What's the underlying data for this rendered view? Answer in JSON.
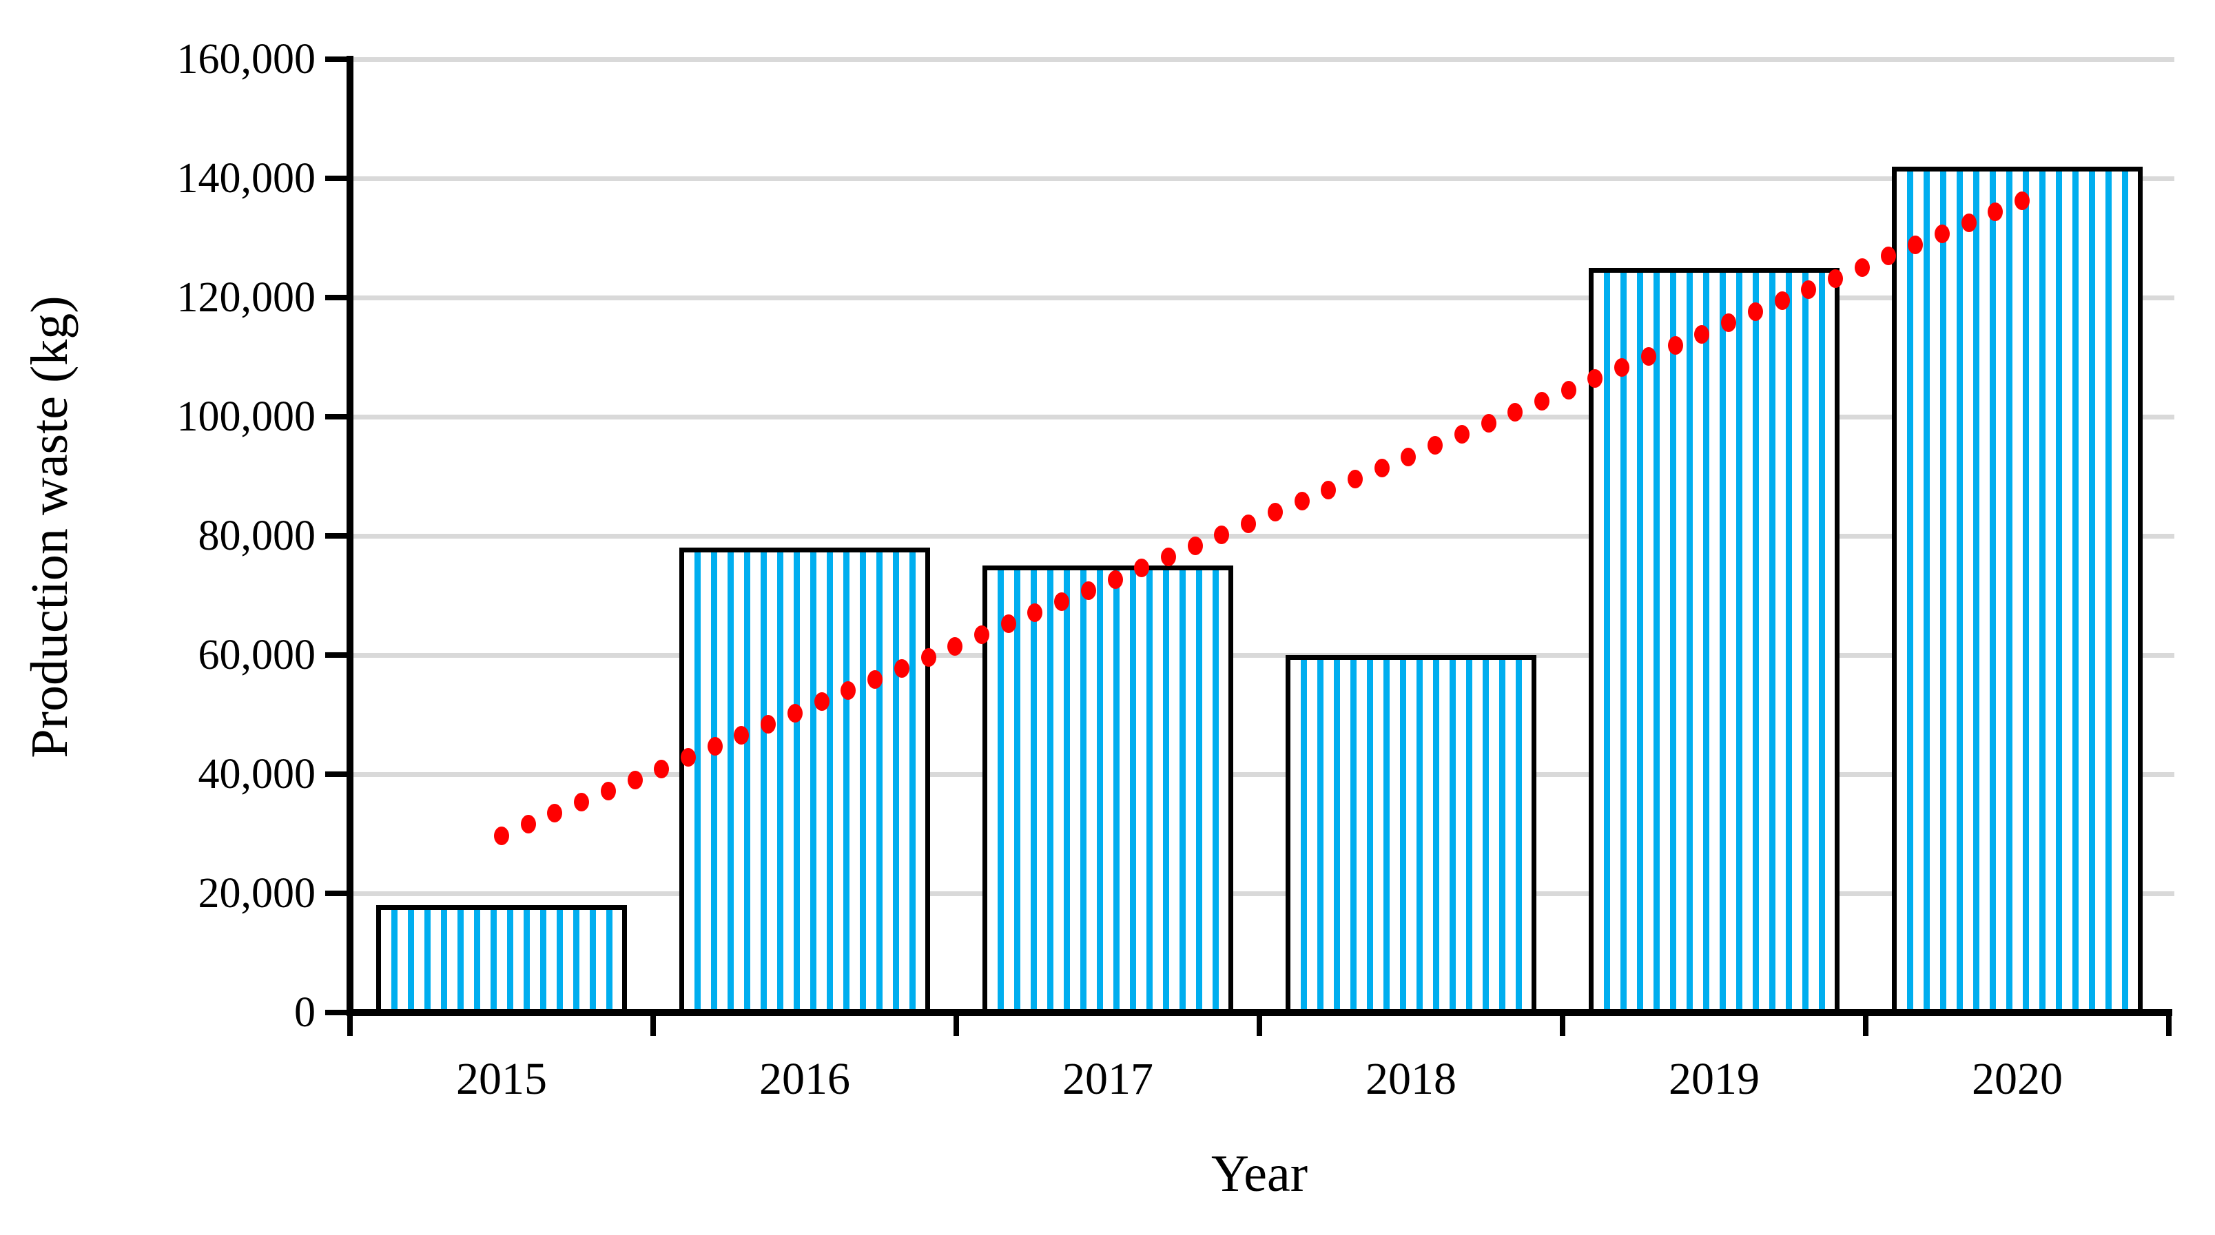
{
  "chart_data": {
    "type": "bar",
    "title": "",
    "xlabel": "Year",
    "ylabel": "Production waste (kg)",
    "categories": [
      "2015",
      "2016",
      "2017",
      "2018",
      "2019",
      "2020"
    ],
    "series": [
      {
        "name": "Production waste (kg)",
        "type": "bar",
        "values": [
          18000,
          78000,
          75000,
          60000,
          125000,
          142000
        ]
      },
      {
        "name": "Linear trendline",
        "type": "dotted_line",
        "start": {
          "category": "2015",
          "value": 29700
        },
        "end": {
          "category": "2020",
          "value": 136300
        }
      }
    ],
    "ylim": [
      0,
      160000
    ],
    "ytick_step": 20000,
    "ytick_labels": [
      "0",
      "20,000",
      "40,000",
      "60,000",
      "80,000",
      "100,000",
      "120,000",
      "140,000",
      "160,000"
    ],
    "grid": true,
    "legend": "none",
    "styles": {
      "background": "#FFFFFF",
      "bar_fill_background": "#FFFFFF",
      "bar_stripe_color": "#00AEEF",
      "bar_border_color": "#000000",
      "trendline_color": "#FF0000",
      "gridline_color": "#D9D9D9",
      "axis_color": "#000000",
      "text_color": "#000000"
    }
  }
}
